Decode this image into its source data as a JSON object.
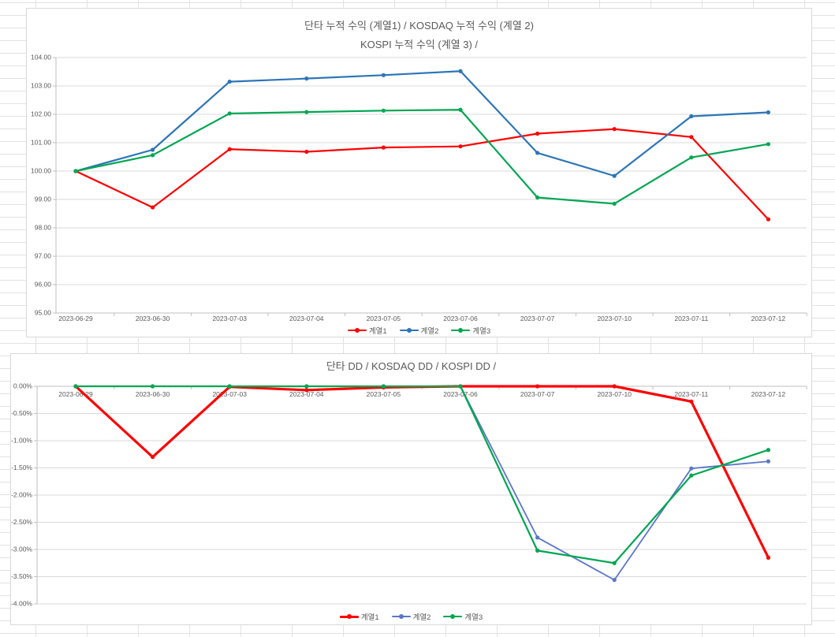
{
  "ui": {
    "background_color": "#FFFFFF",
    "sheet_gridline_color": "#E2E2E2",
    "chart_border_color": "#D9D9D9",
    "chart_gridline_color": "#D9D9D9",
    "axis_line_color": "#BFBFBF",
    "text_color": "#595959"
  },
  "charts": [
    {
      "name": "cumulative-return-chart",
      "title_line1": "단타 누적 수익 (계열1) /  KOSDAQ 누적 수익 (계열 2)",
      "title_line2": "KOSPI 누적 수익 (계열 3) /",
      "chart_data": {
        "type": "line",
        "x": [
          "2023-06-29",
          "2023-06-30",
          "2023-07-03",
          "2023-07-04",
          "2023-07-05",
          "2023-07-06",
          "2023-07-07",
          "2023-07-10",
          "2023-07-11",
          "2023-07-12"
        ],
        "y_tick_labels": [
          "104.00",
          "103.00",
          "102.00",
          "101.00",
          "100.00",
          "99.00",
          "98.00",
          "97.00",
          "96.00",
          "95.00"
        ],
        "ylim": [
          95,
          104
        ],
        "grid": true,
        "legend_position": "bottom",
        "series": [
          {
            "name": "계열1",
            "color": "#FF0000",
            "width": 2.2,
            "values": [
              100.0,
              98.72,
              100.77,
              100.68,
              100.83,
              100.87,
              101.32,
              101.48,
              101.2,
              98.3
            ]
          },
          {
            "name": "계열2",
            "color": "#2E75B6",
            "width": 2.2,
            "values": [
              100.0,
              100.75,
              103.15,
              103.26,
              103.38,
              103.52,
              100.64,
              99.83,
              101.93,
              102.07
            ]
          },
          {
            "name": "계열3",
            "color": "#00A651",
            "width": 2.2,
            "values": [
              100.0,
              100.56,
              102.03,
              102.08,
              102.13,
              102.16,
              99.07,
              98.85,
              100.48,
              100.95
            ]
          }
        ]
      }
    },
    {
      "name": "drawdown-chart",
      "title_line1": "단타 DD / KOSDAQ DD / KOSPI DD /",
      "title_line2": "",
      "chart_data": {
        "type": "line",
        "x": [
          "2023-06-29",
          "2023-06-30",
          "2023-07-03",
          "2023-07-04",
          "2023-07-05",
          "2023-07-06",
          "2023-07-07",
          "2023-07-10",
          "2023-07-11",
          "2023-07-12"
        ],
        "y_tick_labels": [
          "0.00%",
          "-0.50%",
          "-1.00%",
          "-1.50%",
          "-2.00%",
          "-2.50%",
          "-3.00%",
          "-3.50%",
          "-4.00%"
        ],
        "ylim": [
          -4,
          0
        ],
        "grid": true,
        "legend_position": "bottom",
        "series": [
          {
            "name": "계열1",
            "color": "#FF0000",
            "width": 3.2,
            "values": [
              0.0,
              -1.3,
              -0.01,
              -0.07,
              -0.02,
              0.0,
              0.0,
              0.0,
              -0.28,
              -3.15
            ]
          },
          {
            "name": "계열2",
            "color": "#5B76C9",
            "width": 1.8,
            "values": [
              0.0,
              0.0,
              0.0,
              0.0,
              0.0,
              0.0,
              -2.78,
              -3.56,
              -1.51,
              -1.38
            ]
          },
          {
            "name": "계열3",
            "color": "#00A651",
            "width": 2.2,
            "values": [
              0.0,
              0.0,
              0.0,
              0.0,
              0.0,
              0.0,
              -3.02,
              -3.25,
              -1.64,
              -1.17
            ]
          }
        ]
      }
    }
  ]
}
